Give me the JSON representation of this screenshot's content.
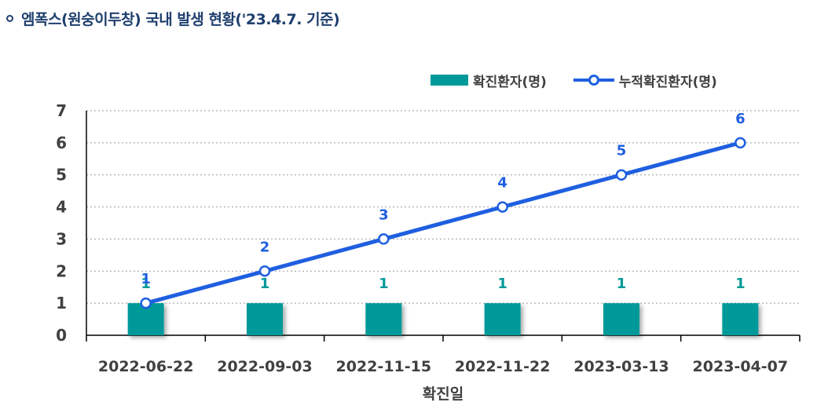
{
  "header": {
    "title": "엠폭스(원숭이두창) 국내 발생 현황('23.4.7. 기준)"
  },
  "chart_data": {
    "type": "bar",
    "categories": [
      "2022-06-22",
      "2022-09-03",
      "2022-11-15",
      "2022-11-22",
      "2023-03-13",
      "2023-04-07"
    ],
    "series": [
      {
        "name": "확진환자(명)",
        "type": "bar",
        "values": [
          1,
          1,
          1,
          1,
          1,
          1
        ]
      },
      {
        "name": "누적확진환자(명)",
        "type": "line",
        "values": [
          1,
          2,
          3,
          4,
          5,
          6
        ]
      }
    ],
    "xlabel": "확진일",
    "ylabel": "",
    "ylim": [
      0,
      7
    ],
    "yticks": [
      0,
      1,
      2,
      3,
      4,
      5,
      6,
      7
    ],
    "grid": "horizontal dotted",
    "legend": "top-right",
    "data_labels": true,
    "colors": {
      "bar": "#009999",
      "bar_label": "#009999",
      "line": "#1f5fe0",
      "line_label": "#1f5fe0"
    }
  }
}
